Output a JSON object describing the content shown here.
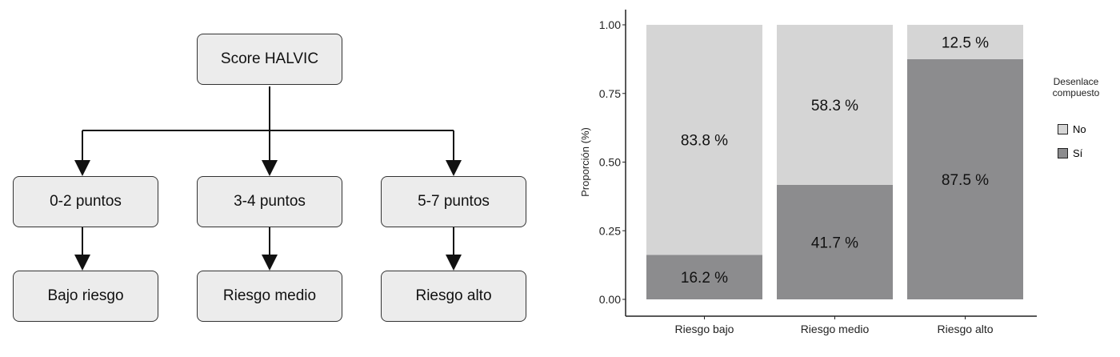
{
  "diagram": {
    "root": "Score HALVIC",
    "points": [
      "0-2 puntos",
      "3-4 puntos",
      "5-7 puntos"
    ],
    "risks": [
      "Bajo riesgo",
      "Riesgo medio",
      "Riesgo alto"
    ]
  },
  "chart_data": {
    "type": "bar",
    "stacked": true,
    "categories": [
      "Riesgo bajo",
      "Riesgo medio",
      "Riesgo alto"
    ],
    "series": [
      {
        "name": "Sí",
        "values": [
          0.162,
          0.417,
          0.875
        ],
        "labels": [
          "16.2 %",
          "41.7 %",
          "87.5 %"
        ],
        "color": "#8c8c8e"
      },
      {
        "name": "No",
        "values": [
          0.838,
          0.583,
          0.125
        ],
        "labels": [
          "83.8 %",
          "58.3 %",
          "12.5 %"
        ],
        "color": "#d5d5d5"
      }
    ],
    "ylabel": "Proporción (%)",
    "xlabel": "",
    "ylim": [
      0,
      1
    ],
    "yticks": [
      "0.00",
      "0.25",
      "0.50",
      "0.75",
      "1.00"
    ],
    "grid": false,
    "legend": {
      "title_line1": "Desenlace",
      "title_line2": "compuesto",
      "items": [
        "No",
        "Sí"
      ],
      "placement": "right"
    }
  }
}
